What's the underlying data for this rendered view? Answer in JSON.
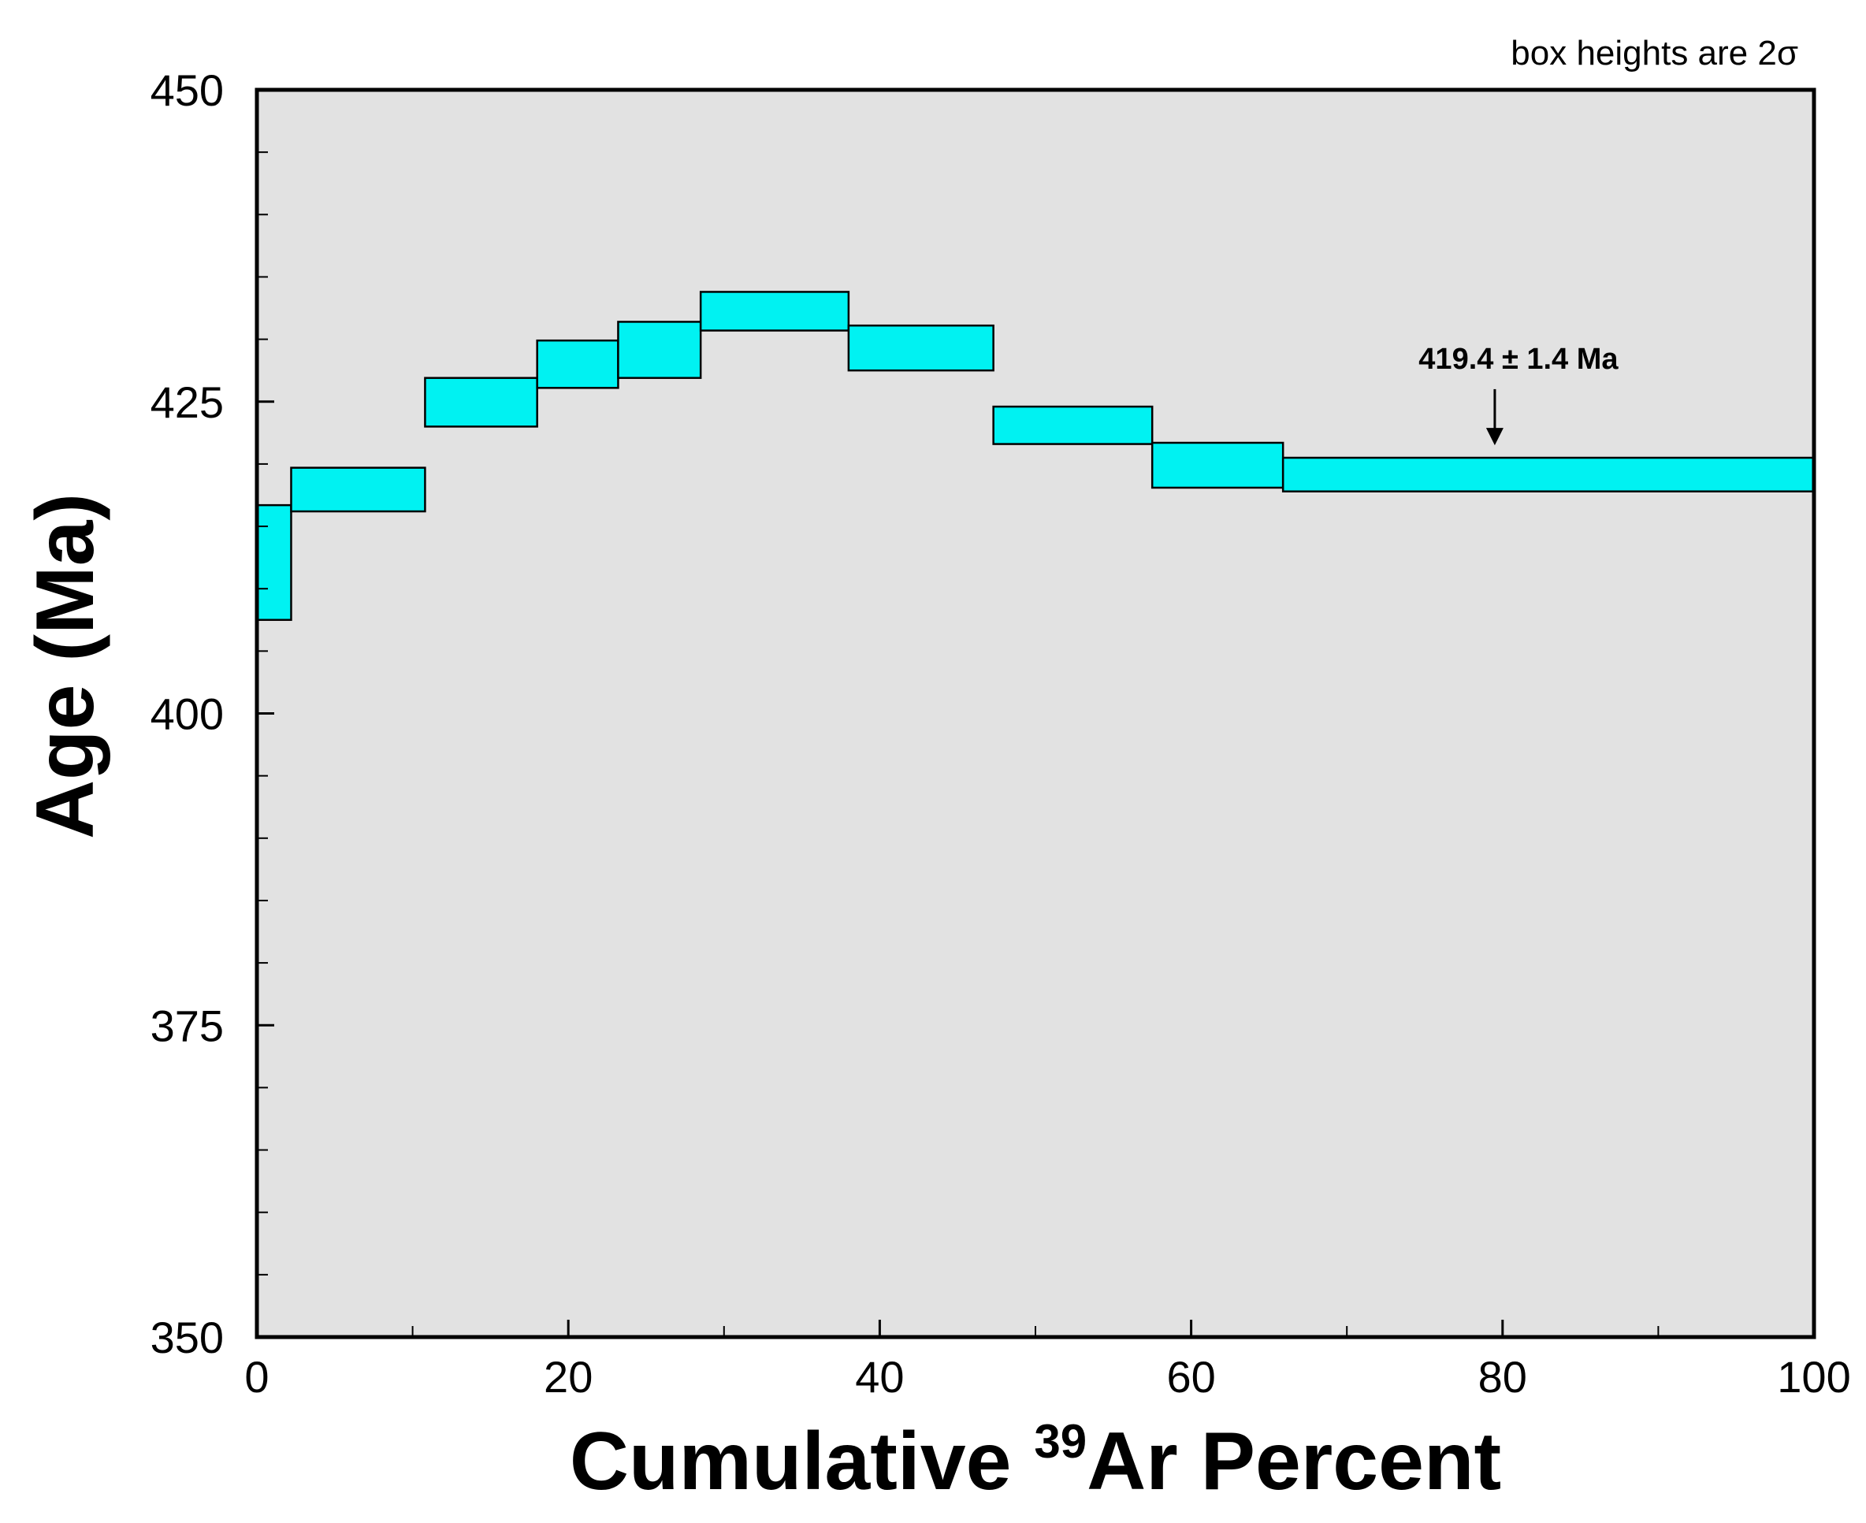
{
  "colors": {
    "plot_background": "#e2e2e2",
    "step_fill": "#00f2f2",
    "step_stroke": "#000000",
    "axis": "#000000"
  },
  "chart_data": {
    "type": "step-box",
    "title": "",
    "note": "box heights are 2σ",
    "xlabel_prefix": "Cumulative ",
    "xlabel_superscript": "39",
    "xlabel_suffix": "Ar Percent",
    "ylabel": "Age (Ma)",
    "xlim": [
      0,
      100
    ],
    "ylim": [
      350,
      450
    ],
    "xticks": [
      0,
      20,
      40,
      60,
      80,
      100
    ],
    "x_minor_step": 10,
    "yticks": [
      350,
      375,
      400,
      425,
      450
    ],
    "y_minor_step": 5,
    "steps": [
      {
        "x_start": 0,
        "x_end": 2.2,
        "age_low": 407.5,
        "age_high": 416.7
      },
      {
        "x_start": 2.2,
        "x_end": 10.8,
        "age_low": 416.2,
        "age_high": 419.7
      },
      {
        "x_start": 10.8,
        "x_end": 18.0,
        "age_low": 423.0,
        "age_high": 426.9
      },
      {
        "x_start": 18.0,
        "x_end": 23.2,
        "age_low": 426.1,
        "age_high": 429.9
      },
      {
        "x_start": 23.2,
        "x_end": 28.5,
        "age_low": 426.9,
        "age_high": 431.4
      },
      {
        "x_start": 28.5,
        "x_end": 38.0,
        "age_low": 430.7,
        "age_high": 433.8
      },
      {
        "x_start": 38.0,
        "x_end": 47.3,
        "age_low": 427.5,
        "age_high": 431.1
      },
      {
        "x_start": 47.3,
        "x_end": 57.5,
        "age_low": 421.6,
        "age_high": 424.6
      },
      {
        "x_start": 57.5,
        "x_end": 65.9,
        "age_low": 418.1,
        "age_high": 421.7
      },
      {
        "x_start": 65.9,
        "x_end": 100,
        "age_low": 417.8,
        "age_high": 420.5
      }
    ],
    "annotation": {
      "text": "419.4 ± 1.4 Ma",
      "x": 79.5,
      "arrow_from_age": 426.0,
      "arrow_to_age": 421.5
    }
  }
}
